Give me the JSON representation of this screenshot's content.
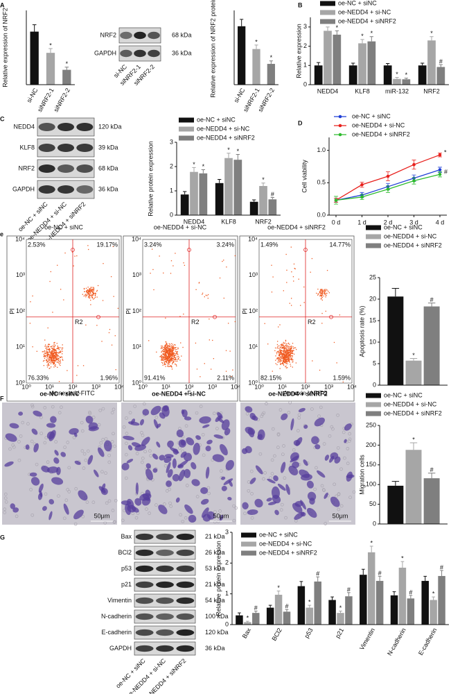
{
  "panel_labels": [
    "A",
    "B",
    "C",
    "D",
    "e",
    "F",
    "G"
  ],
  "blots": [
    {
      "rows": [
        [
          "NRF2",
          "68 kDa"
        ],
        [
          "GAPDH",
          "36 kDa"
        ]
      ],
      "lanes": [
        "si-NC",
        "siNRF2-1",
        "siNRF2-2"
      ]
    },
    {
      "rows": [
        [
          "NEDD4",
          "120 kDa"
        ],
        [
          "KLF8",
          "39 kDa"
        ],
        [
          "NRF2",
          "68 kDa"
        ],
        [
          "GAPDH",
          "36 kDa"
        ]
      ],
      "lanes": [
        "oe-NC + siNC",
        "oe-NEDD4 + si-NC",
        "oe-NEDD4 + siNRF2"
      ]
    },
    {
      "rows": [
        [
          "Bax",
          "21 kDa"
        ],
        [
          "BCl2",
          "26 kDa"
        ],
        [
          "p53",
          "53 kDa"
        ],
        [
          "p21",
          "21 kDa"
        ],
        [
          "Vimentin",
          "54 kDa"
        ],
        [
          "N-cadherin",
          "100 kDa"
        ],
        [
          "E-cadherin",
          "120 kDa"
        ],
        [
          "GAPDH",
          "36 kDa"
        ]
      ],
      "lanes": [
        "oe-NC + siNC",
        "oe-NEDD4 + si-NC",
        "oe-NEDD4 + siNRF2"
      ]
    }
  ],
  "flow": {
    "decades": [
      "10⁰",
      "10¹",
      "10²",
      "10³",
      "10⁴"
    ],
    "panels": [
      {
        "title": "oe-NC + siNC",
        "quadrants": [
          "2.53%",
          "19.17%",
          "76.33%",
          "1.96%"
        ],
        "gate": "R2",
        "x_label": "Annexin V-FITC",
        "y_label": "PI"
      },
      {
        "title": "oe-NEDD4 + si-NC",
        "quadrants": [
          "3.24%",
          "3.24%",
          "91.41%",
          "2.11%"
        ],
        "gate": "R2",
        "x_label": "F",
        "y_label": "PI"
      },
      {
        "title": "oe-NEDD4 + siNRF2",
        "quadrants": [
          "1.49%",
          "14.77%",
          "82.15%",
          "1.59%"
        ],
        "gate": "R2",
        "x_label": "Annexin V-FITC",
        "y_label": "PI"
      }
    ]
  },
  "micrographs": [
    {
      "title": "oe-NC + siNC",
      "scale": "50μm"
    },
    {
      "title": "oe-NEDD4 + si-NC",
      "scale": "50μm"
    },
    {
      "title": "oe-NEDD4 + siNRF2",
      "scale": "50μm"
    }
  ],
  "chart_data": [
    {
      "type": "bar",
      "y_label": "Relative expression of NRF2",
      "categories": [
        "si-NC",
        "siNRF2-1",
        "siNRF2-2"
      ],
      "values": [
        1.0,
        0.6,
        0.28
      ],
      "errors": [
        0.13,
        0.08,
        0.05
      ],
      "marks": [
        null,
        "*",
        "*"
      ],
      "colors": [
        "#111111",
        "#a6a6a6",
        "#7f7f7f"
      ],
      "ylim": [
        0,
        1.4
      ]
    },
    {
      "type": "bar",
      "y_label": "Relative expression of NRF2 protein",
      "categories": [
        "si-NC",
        "siNRF2-1",
        "siNRF2-2"
      ],
      "values": [
        0.59,
        0.36,
        0.21
      ],
      "errors": [
        0.07,
        0.04,
        0.03
      ],
      "marks": [
        null,
        "*",
        "*"
      ],
      "colors": [
        "#111111",
        "#a6a6a6",
        "#7f7f7f"
      ],
      "ylim": [
        0,
        0.75
      ]
    },
    {
      "type": "bar",
      "y_label": "Relative expression",
      "categories": [
        "NEDD4",
        "KLF8",
        "miR-132",
        "NRF2"
      ],
      "ylim": [
        0,
        3.5
      ],
      "yticks": [
        0,
        1,
        2,
        3
      ],
      "series": [
        {
          "name": "oe-NC + siNC",
          "color": "#111111",
          "values": [
            1,
            1,
            1,
            1
          ],
          "errors": [
            0.15,
            0.12,
            0.1,
            0.12
          ]
        },
        {
          "name": "oe-NEDD4 + si-NC",
          "color": "#a6a6a6",
          "values": [
            2.8,
            2.15,
            0.3,
            2.3
          ],
          "errors": [
            0.2,
            0.2,
            0.08,
            0.2
          ],
          "marks": [
            "*",
            "*",
            "*",
            "*"
          ]
        },
        {
          "name": "oe-NEDD4 + siNRF2",
          "color": "#7f7f7f",
          "values": [
            2.6,
            2.25,
            0.28,
            0.92
          ],
          "errors": [
            0.2,
            0.25,
            0.06,
            0.12
          ],
          "marks": [
            "*",
            "*",
            "*",
            "#"
          ]
        }
      ]
    },
    {
      "type": "bar",
      "y_label": "Relative protein expression",
      "categories": [
        "NEDD4",
        "KLF8",
        "NRF2"
      ],
      "ylim": [
        0,
        3
      ],
      "yticks": [
        0,
        1,
        2,
        3
      ],
      "series": [
        {
          "name": "oe-NC + siNC",
          "color": "#111111",
          "values": [
            0.85,
            1.32,
            0.55
          ],
          "errors": [
            0.12,
            0.15,
            0.08
          ]
        },
        {
          "name": "oe-NEDD4 + si-NC",
          "color": "#a6a6a6",
          "values": [
            1.78,
            2.35,
            1.2
          ],
          "errors": [
            0.18,
            0.2,
            0.12
          ],
          "marks": [
            "*",
            "*",
            "*"
          ]
        },
        {
          "name": "oe-NEDD4 + siNRF2",
          "color": "#7f7f7f",
          "values": [
            1.72,
            2.28,
            0.65
          ],
          "errors": [
            0.15,
            0.22,
            0.08
          ],
          "marks": [
            "*",
            "*",
            "#"
          ]
        }
      ]
    },
    {
      "type": "line",
      "y_label": "Cell viability",
      "categories": [
        "0 d",
        "1 d",
        "2 d",
        "3 d",
        "4 d"
      ],
      "ylim": [
        0,
        1.2
      ],
      "yticks": [
        {
          "value": 0,
          "label": "0.0"
        },
        {
          "value": 0.5,
          "label": "0.5"
        },
        {
          "value": 1,
          "label": "1.0"
        }
      ],
      "series": [
        {
          "name": "oe-NC + siNC",
          "color": "#1f3fd6",
          "values": [
            0.23,
            0.31,
            0.44,
            0.57,
            0.7
          ],
          "errors": [
            0.03,
            0.04,
            0.05,
            0.05,
            0.04
          ]
        },
        {
          "name": "oe-NEDD4 + si-NC",
          "color": "#e8201c",
          "values": [
            0.23,
            0.47,
            0.6,
            0.78,
            0.93
          ],
          "errors": [
            0.03,
            0.04,
            0.07,
            0.07,
            0.03
          ],
          "marks": [
            null,
            null,
            null,
            null,
            "*"
          ]
        },
        {
          "name": "oe-NEDD4 + siNRF2",
          "color": "#2dbb2d",
          "values": [
            0.23,
            0.28,
            0.4,
            0.53,
            0.63
          ],
          "errors": [
            0.06,
            0.04,
            0.05,
            0.05,
            0.04
          ],
          "marks": [
            null,
            null,
            null,
            null,
            "#"
          ]
        }
      ]
    },
    {
      "type": "bar",
      "y_label": "Apoptosis rate (%)",
      "ylim": [
        0,
        25
      ],
      "yticks": [
        0,
        5,
        10,
        15,
        20,
        25
      ],
      "series": [
        {
          "name": "oe-NC + siNC",
          "color": "#111111",
          "values": [
            20.6
          ],
          "errors": [
            1.9
          ]
        },
        {
          "name": "oe-NEDD4 + si-NC",
          "color": "#a6a6a6",
          "values": [
            5.7
          ],
          "errors": [
            0.5
          ],
          "marks": [
            "*"
          ]
        },
        {
          "name": "oe-NEDD4 + siNRF2",
          "color": "#7f7f7f",
          "values": [
            18.3
          ],
          "errors": [
            0.8
          ],
          "marks": [
            "#"
          ]
        }
      ]
    },
    {
      "type": "bar",
      "y_label": "Migration cells",
      "ylim": [
        0,
        250
      ],
      "yticks": [
        0,
        50,
        100,
        150,
        200,
        250
      ],
      "series": [
        {
          "name": "oe-NC + siNC",
          "color": "#111111",
          "values": [
            97
          ],
          "errors": [
            11
          ]
        },
        {
          "name": "oe-NEDD4 + si-NC",
          "color": "#a6a6a6",
          "values": [
            188
          ],
          "errors": [
            18
          ],
          "marks": [
            "*"
          ]
        },
        {
          "name": "oe-NEDD4 + siNRF2",
          "color": "#7f7f7f",
          "values": [
            116
          ],
          "errors": [
            13
          ],
          "marks": [
            "#"
          ]
        }
      ]
    },
    {
      "type": "bar",
      "y_label": "Relative protein expression",
      "categories": [
        "Bax",
        "BCl2",
        "p53",
        "p21",
        "Vimentin",
        "N-cadherin",
        "E-cadherin"
      ],
      "ylim": [
        0,
        3
      ],
      "yticks": [
        0,
        1,
        2,
        3
      ],
      "series": [
        {
          "name": "oe-NC + siNC",
          "color": "#111111",
          "values": [
            0.3,
            0.55,
            1.25,
            0.8,
            1.62,
            0.95,
            1.42
          ],
          "errors": [
            0.08,
            0.08,
            0.15,
            0.1,
            0.18,
            0.12,
            0.15
          ]
        },
        {
          "name": "oe-NEDD4 + si-NC",
          "color": "#a6a6a6",
          "values": [
            0.08,
            0.97,
            0.55,
            0.38,
            2.35,
            1.85,
            0.8
          ],
          "errors": [
            0.03,
            0.12,
            0.08,
            0.06,
            0.2,
            0.2,
            0.1
          ],
          "marks": [
            "*",
            "*",
            "*",
            "*",
            "*",
            "*",
            "*"
          ]
        },
        {
          "name": "oe-NEDD4 + siNRF2",
          "color": "#7f7f7f",
          "values": [
            0.38,
            0.42,
            1.4,
            0.92,
            1.42,
            0.85,
            1.58
          ],
          "errors": [
            0.06,
            0.07,
            0.15,
            0.12,
            0.15,
            0.1,
            0.18
          ],
          "marks": [
            "#",
            "#",
            "#",
            "#",
            "#",
            "#",
            "#"
          ]
        }
      ]
    }
  ]
}
